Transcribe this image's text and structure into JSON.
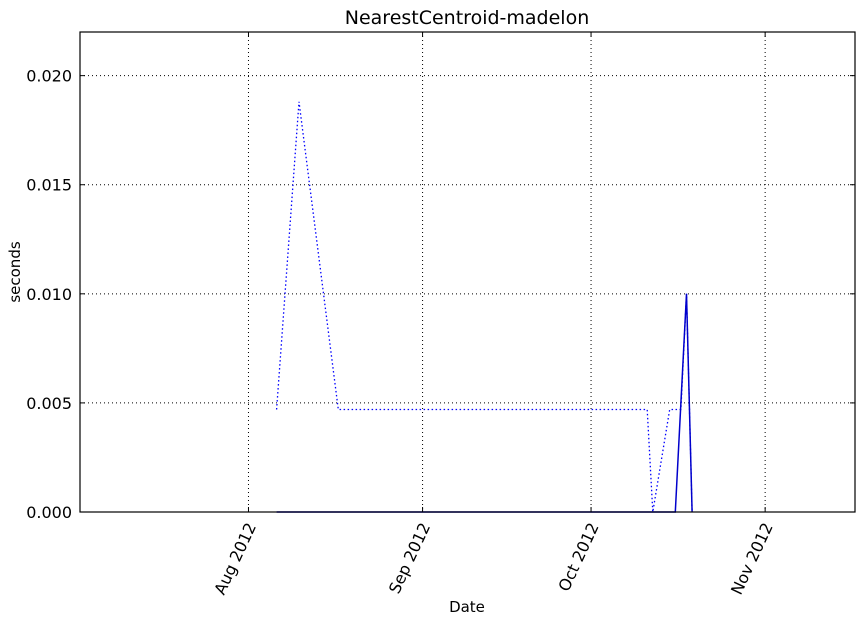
{
  "chart_data": {
    "type": "line",
    "title": "NearestCentroid-madelon",
    "xlabel": "Date",
    "ylabel": "seconds",
    "xlim": [
      "2012-07-02",
      "2012-11-17"
    ],
    "ylim": [
      0,
      0.022
    ],
    "grid": true,
    "x_ticks": [
      {
        "date": "2012-08-01",
        "label": "Aug 2012"
      },
      {
        "date": "2012-09-01",
        "label": "Sep 2012"
      },
      {
        "date": "2012-10-01",
        "label": "Oct 2012"
      },
      {
        "date": "2012-11-01",
        "label": "Nov 2012"
      }
    ],
    "y_ticks": [
      {
        "value": 0.0,
        "label": "0.000"
      },
      {
        "value": 0.005,
        "label": "0.005"
      },
      {
        "value": 0.01,
        "label": "0.010"
      },
      {
        "value": 0.015,
        "label": "0.015"
      },
      {
        "value": 0.02,
        "label": "0.020"
      }
    ],
    "series": [
      {
        "style": "dotted",
        "color": "#0000ff",
        "points": [
          {
            "date": "2012-08-06",
            "value": 0.0047
          },
          {
            "date": "2012-08-10",
            "value": 0.0188
          },
          {
            "date": "2012-08-17",
            "value": 0.0047
          },
          {
            "date": "2012-10-11",
            "value": 0.0047
          },
          {
            "date": "2012-10-12",
            "value": 0.0
          },
          {
            "date": "2012-10-15",
            "value": 0.0047
          },
          {
            "date": "2012-10-17",
            "value": 0.0047
          },
          {
            "date": "2012-10-18",
            "value": 0.01
          },
          {
            "date": "2012-10-19",
            "value": 0.0
          }
        ]
      },
      {
        "style": "solid",
        "color": "#0000cc",
        "points": [
          {
            "date": "2012-08-06",
            "value": 0.0
          },
          {
            "date": "2012-10-16",
            "value": 0.0
          },
          {
            "date": "2012-10-18",
            "value": 0.01
          },
          {
            "date": "2012-10-19",
            "value": 0.0
          }
        ]
      }
    ]
  }
}
